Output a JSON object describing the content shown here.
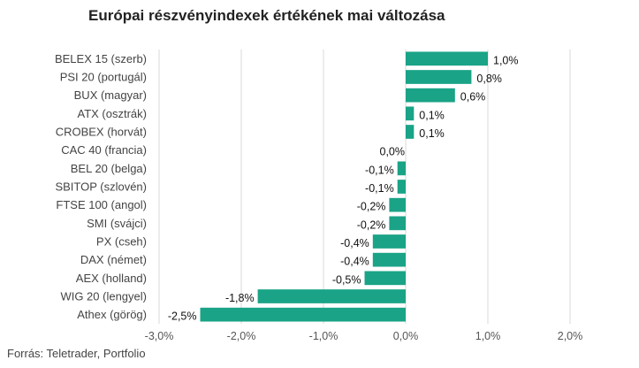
{
  "chart_data": {
    "type": "bar",
    "orientation": "horizontal",
    "title": "Európai részvényindexek értékének mai változása",
    "source": "Forrás: Teletrader, Portfolio",
    "categories": [
      "BELEX 15 (szerb)",
      "PSI 20 (portugál)",
      "BUX (magyar)",
      "ATX (osztrák)",
      "CROBEX (horvát)",
      "CAC 40 (francia)",
      "BEL 20 (belga)",
      "SBITOP (szlovén)",
      "FTSE 100 (angol)",
      "SMI (svájci)",
      "PX (cseh)",
      "DAX (német)",
      "AEX (holland)",
      "WIG 20 (lengyel)",
      "Athex (görög)"
    ],
    "values": [
      1.0,
      0.8,
      0.6,
      0.1,
      0.1,
      0.0,
      -0.1,
      -0.1,
      -0.2,
      -0.2,
      -0.4,
      -0.4,
      -0.5,
      -1.8,
      -2.5
    ],
    "value_labels": [
      "1,0%",
      "0,8%",
      "0,6%",
      "0,1%",
      "0,1%",
      "0,0%",
      "-0,1%",
      "-0,1%",
      "-0,2%",
      "-0,2%",
      "-0,4%",
      "-0,4%",
      "-0,5%",
      "-1,8%",
      "-2,5%"
    ],
    "xlim": [
      -3.0,
      2.0
    ],
    "xticks": [
      -3.0,
      -2.0,
      -1.0,
      0.0,
      1.0,
      2.0
    ],
    "xtick_labels": [
      "-3,0%",
      "-2,0%",
      "-1,0%",
      "0,0%",
      "1,0%",
      "2,0%"
    ],
    "grid": true,
    "bar_color": "#1aa387"
  }
}
